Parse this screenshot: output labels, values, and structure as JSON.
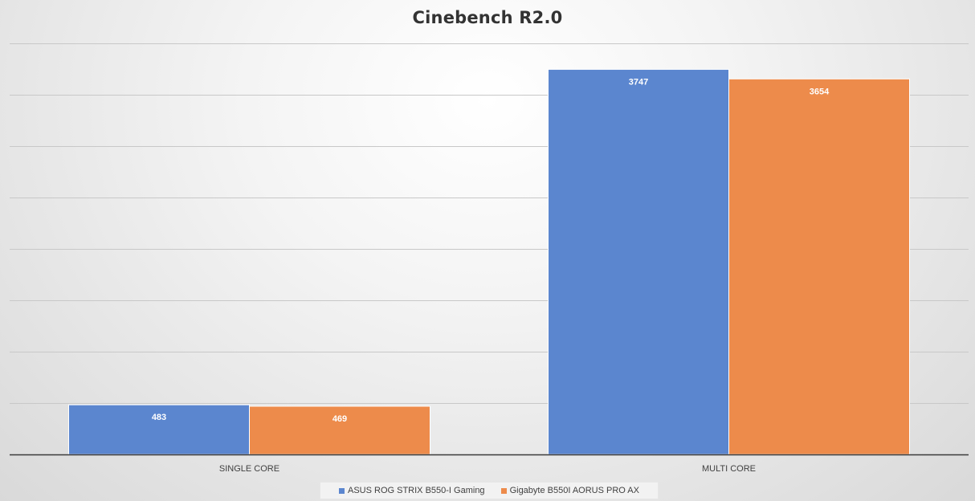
{
  "chart_data": {
    "type": "bar",
    "title": "Cinebench R2.0",
    "categories": [
      "SINGLE CORE",
      "MULTI CORE"
    ],
    "series": [
      {
        "name": "ASUS ROG STRIX B550-I Gaming",
        "color": "#5b86cf",
        "values": [
          483,
          3747
        ]
      },
      {
        "name": "Gigabyte B550I AORUS PRO AX",
        "color": "#ed8b4b",
        "values": [
          469,
          3654
        ]
      }
    ],
    "ylim": [
      0,
      4000
    ],
    "ytick_step": 500,
    "grid": true,
    "legend": "bottom",
    "data_labels": true
  }
}
